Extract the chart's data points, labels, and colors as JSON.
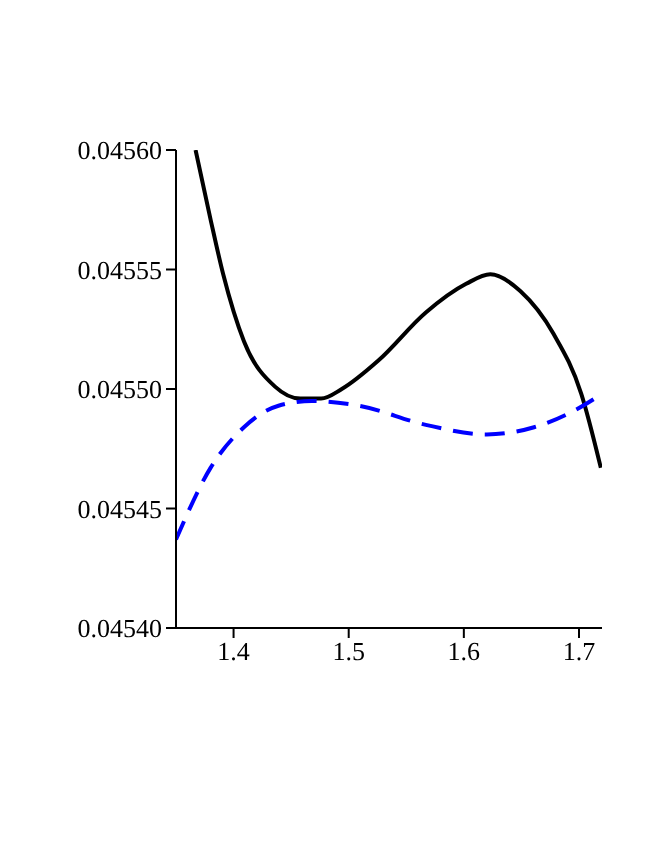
{
  "chart_data": {
    "type": "line",
    "xlim": [
      1.35,
      1.72
    ],
    "xticks": [
      1.4,
      1.5,
      1.6,
      1.7
    ],
    "ylim": [
      0.0454,
      0.0456
    ],
    "yticks": [
      {
        "value": 0.0454,
        "label": "0.04540"
      },
      {
        "value": 0.04545,
        "label": "0.04545"
      },
      {
        "value": 0.0455,
        "label": "0.04550"
      },
      {
        "value": 0.04555,
        "label": "0.04555"
      },
      {
        "value": 0.0456,
        "label": "0.04560"
      }
    ],
    "grid": false,
    "legend": false,
    "marker": "none",
    "series": [
      {
        "color": "#000000",
        "line_style": "solid",
        "x": [
          1.367,
          1.38,
          1.391,
          1.409,
          1.436,
          1.458,
          1.476,
          1.494,
          1.526,
          1.567,
          1.602,
          1.623,
          1.649,
          1.678,
          1.702,
          1.719
        ],
        "values": [
          0.0456,
          0.045571,
          0.045548,
          0.04552,
          0.045501,
          0.045496,
          0.045496,
          0.0455,
          0.045512,
          0.045532,
          0.045544,
          0.045548,
          0.045541,
          0.045523,
          0.045498,
          0.045467
        ]
      },
      {
        "color": "#0000ff",
        "line_style": "dashed",
        "x": [
          1.35,
          1.38,
          1.409,
          1.439,
          1.468,
          1.509,
          1.567,
          1.62,
          1.661,
          1.696,
          1.72
        ],
        "values": [
          0.045437,
          0.045467,
          0.045484,
          0.045493,
          0.045495,
          0.045493,
          0.045485,
          0.045481,
          0.045484,
          0.045491,
          0.045498
        ]
      }
    ]
  }
}
